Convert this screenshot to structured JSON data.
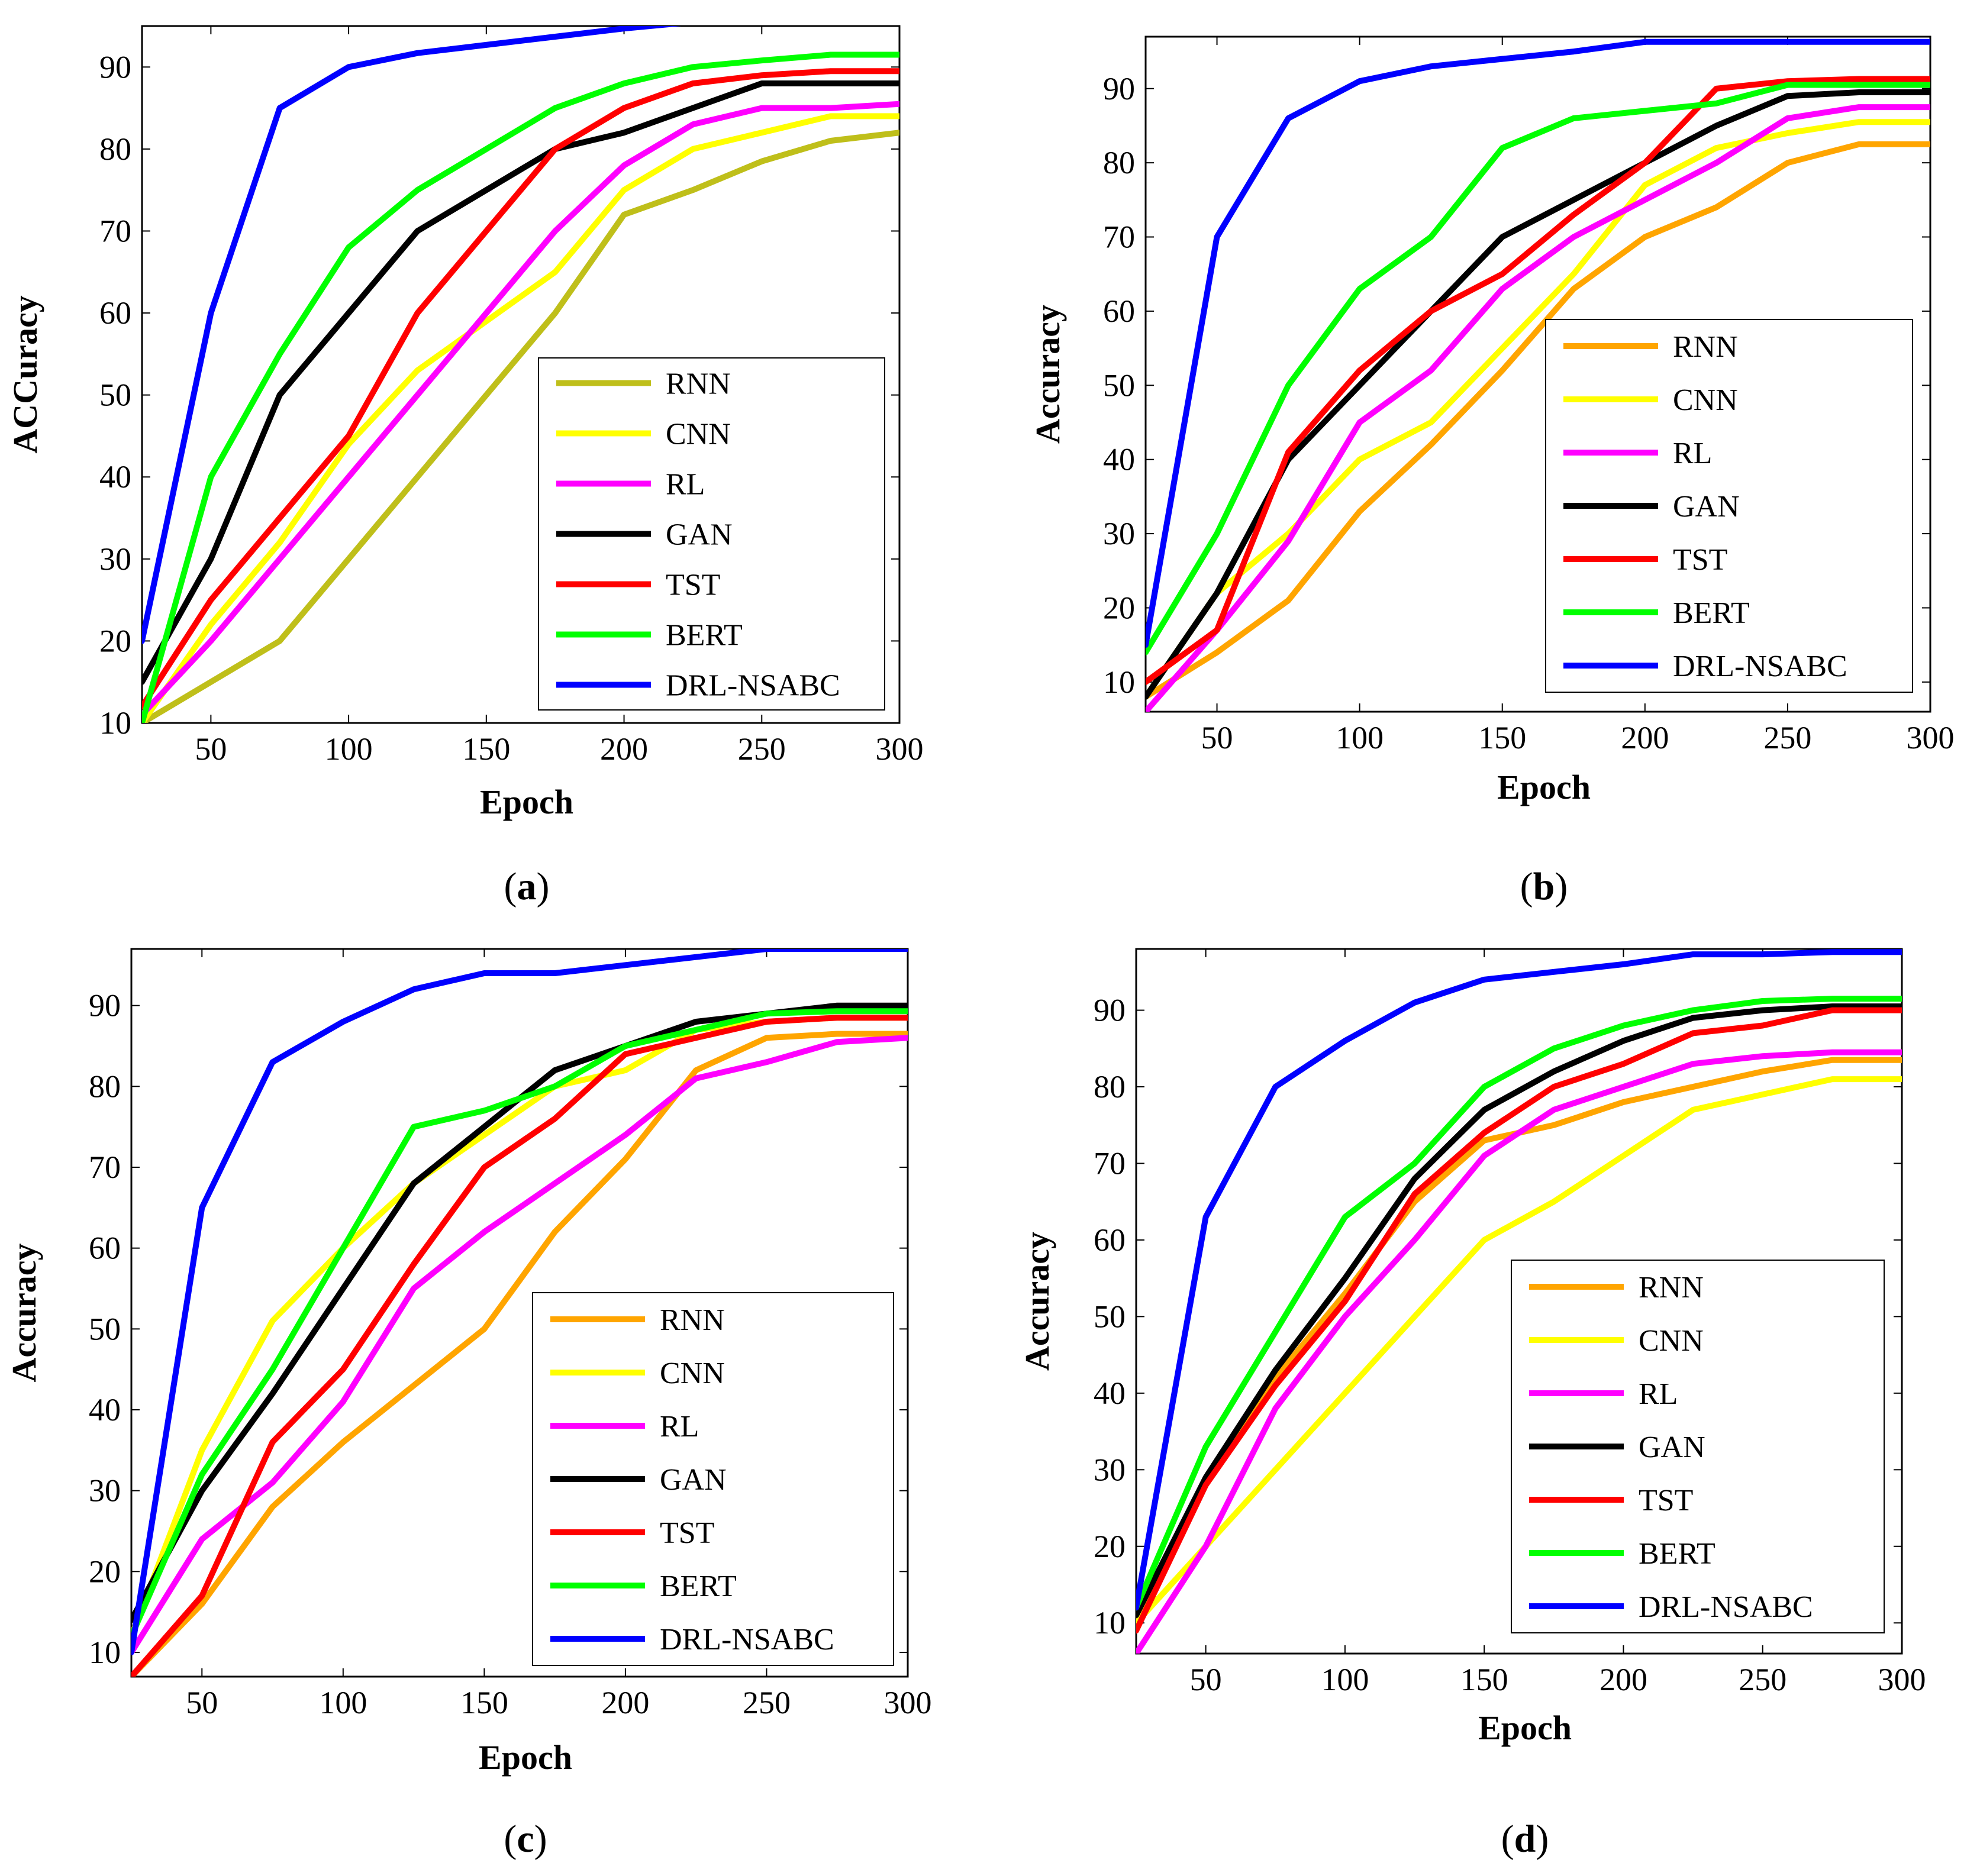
{
  "chart_data": [
    {
      "id": "a",
      "type": "line",
      "caption_letter": "a",
      "xlabel": "Epoch",
      "ylabel": "ACCuracy",
      "xlim": [
        25,
        300
      ],
      "ylim": [
        10,
        95
      ],
      "xticks": [
        50,
        100,
        150,
        200,
        250,
        300
      ],
      "yticks": [
        10,
        20,
        30,
        40,
        50,
        60,
        70,
        80,
        90
      ],
      "legend_position": "bottom-right",
      "x": [
        25,
        50,
        75,
        100,
        125,
        150,
        175,
        200,
        225,
        250,
        275,
        300
      ],
      "series": [
        {
          "name": "RNN",
          "color": "#bfbf1a",
          "values": [
            10,
            15,
            20,
            30,
            40,
            50,
            60,
            72,
            75,
            78.5,
            81,
            82
          ]
        },
        {
          "name": "CNN",
          "color": "#ffff00",
          "values": [
            10,
            22,
            32,
            44,
            53,
            59,
            65,
            75,
            80,
            82,
            84,
            84
          ]
        },
        {
          "name": "RL",
          "color": "#ff00ff",
          "values": [
            11,
            20,
            30,
            40,
            50,
            60,
            70,
            78,
            83,
            85,
            85,
            85.5
          ]
        },
        {
          "name": "GAN",
          "color": "#000000",
          "values": [
            15,
            30,
            50,
            60,
            70,
            75,
            80,
            82,
            85,
            88,
            88,
            88
          ]
        },
        {
          "name": "TST",
          "color": "#ff0000",
          "values": [
            12,
            25,
            35,
            45,
            60,
            70,
            80,
            85,
            88,
            89,
            89.5,
            89.5
          ]
        },
        {
          "name": "BERT",
          "color": "#00ff00",
          "values": [
            10,
            40,
            55,
            68,
            75,
            80,
            85,
            88,
            90,
            90.8,
            91.5,
            91.5
          ]
        },
        {
          "name": "DRL-NSABC",
          "color": "#0000ff",
          "values": [
            20,
            60,
            85,
            90,
            91.7,
            92.7,
            93.7,
            94.7,
            95.5,
            95.5,
            95.5,
            95.5
          ]
        }
      ]
    },
    {
      "id": "b",
      "type": "line",
      "caption_letter": "b",
      "xlabel": "Epoch",
      "ylabel": "Accuracy",
      "xlim": [
        25,
        300
      ],
      "ylim": [
        6,
        97
      ],
      "xticks": [
        50,
        100,
        150,
        200,
        250,
        300
      ],
      "yticks": [
        10,
        20,
        30,
        40,
        50,
        60,
        70,
        80,
        90
      ],
      "legend_position": "bottom-right",
      "x": [
        25,
        50,
        75,
        100,
        125,
        150,
        175,
        200,
        225,
        250,
        275,
        300
      ],
      "series": [
        {
          "name": "RNN",
          "color": "#ffa500",
          "values": [
            8,
            14,
            21,
            33,
            42,
            52,
            63,
            70,
            74,
            80,
            82.5,
            82.5
          ]
        },
        {
          "name": "CNN",
          "color": "#ffff00",
          "values": [
            8,
            22,
            30,
            40,
            45,
            55,
            65,
            77,
            82,
            84,
            85.5,
            85.5
          ]
        },
        {
          "name": "RL",
          "color": "#ff00ff",
          "values": [
            6,
            17,
            29,
            45,
            52,
            63,
            70,
            75,
            80,
            86,
            87.5,
            87.5
          ]
        },
        {
          "name": "GAN",
          "color": "#000000",
          "values": [
            8,
            22,
            40,
            50,
            60,
            70,
            75,
            80,
            85,
            89,
            89.5,
            89.5
          ]
        },
        {
          "name": "TST",
          "color": "#ff0000",
          "values": [
            10,
            17,
            41,
            52,
            60,
            65,
            73,
            80,
            90,
            91,
            91.3,
            91.3
          ]
        },
        {
          "name": "BERT",
          "color": "#00ff00",
          "values": [
            14,
            30,
            50,
            63,
            70,
            82,
            86,
            87,
            88,
            90.5,
            90.5,
            90.5
          ]
        },
        {
          "name": "DRL-NSABC",
          "color": "#0000ff",
          "values": [
            15,
            70,
            86,
            91,
            93,
            94,
            95,
            96.3,
            96.3,
            96.3,
            96.3,
            96.3
          ]
        }
      ]
    },
    {
      "id": "c",
      "type": "line",
      "caption_letter": "c",
      "xlabel": "Epoch",
      "ylabel": "Accuracy",
      "xlim": [
        25,
        300
      ],
      "ylim": [
        7,
        97
      ],
      "xticks": [
        50,
        100,
        150,
        200,
        250,
        300
      ],
      "yticks": [
        10,
        20,
        30,
        40,
        50,
        60,
        70,
        80,
        90
      ],
      "legend_position": "bottom-right",
      "x": [
        25,
        50,
        75,
        100,
        125,
        150,
        175,
        200,
        225,
        250,
        275,
        300
      ],
      "series": [
        {
          "name": "RNN",
          "color": "#ffa500",
          "values": [
            7,
            16,
            28,
            36,
            43,
            50,
            62,
            71,
            82,
            86,
            86.5,
            86.5
          ]
        },
        {
          "name": "CNN",
          "color": "#ffff00",
          "values": [
            12,
            35,
            51,
            60,
            68,
            74,
            80,
            82,
            87,
            88,
            88.5,
            88.5
          ]
        },
        {
          "name": "RL",
          "color": "#ff00ff",
          "values": [
            10,
            24,
            31,
            41,
            55,
            62,
            68,
            74,
            81,
            83,
            85.5,
            86
          ]
        },
        {
          "name": "GAN",
          "color": "#000000",
          "values": [
            14,
            30,
            42,
            55,
            68,
            75,
            82,
            85,
            88,
            89,
            90,
            90
          ]
        },
        {
          "name": "TST",
          "color": "#ff0000",
          "values": [
            7,
            17,
            36,
            45,
            58,
            70,
            76,
            84,
            86,
            88,
            88.5,
            88.5
          ]
        },
        {
          "name": "BERT",
          "color": "#00ff00",
          "values": [
            12,
            32,
            45,
            60,
            75,
            77,
            80,
            85,
            87,
            89,
            89.3,
            89.3
          ]
        },
        {
          "name": "DRL-NSABC",
          "color": "#0000ff",
          "values": [
            10,
            65,
            83,
            88,
            92,
            94,
            94,
            95,
            96,
            97,
            97,
            97
          ]
        }
      ]
    },
    {
      "id": "d",
      "type": "line",
      "caption_letter": "d",
      "xlabel": "Epoch",
      "ylabel": "Accuracy",
      "xlim": [
        25,
        300
      ],
      "ylim": [
        6,
        98
      ],
      "xticks": [
        50,
        100,
        150,
        200,
        250,
        300
      ],
      "yticks": [
        10,
        20,
        30,
        40,
        50,
        60,
        70,
        80,
        90
      ],
      "legend_position": "bottom-right",
      "x": [
        25,
        50,
        75,
        100,
        125,
        150,
        175,
        200,
        225,
        250,
        275,
        300
      ],
      "series": [
        {
          "name": "RNN",
          "color": "#ffa500",
          "values": [
            10,
            28,
            42,
            53,
            65,
            73,
            75,
            78,
            80,
            82,
            83.5,
            83.5
          ]
        },
        {
          "name": "CNN",
          "color": "#ffff00",
          "values": [
            10,
            20,
            30,
            40,
            50,
            60,
            65,
            71,
            77,
            79,
            81,
            81
          ]
        },
        {
          "name": "RL",
          "color": "#ff00ff",
          "values": [
            6,
            20,
            38,
            50,
            60,
            71,
            77,
            80,
            83,
            84,
            84.5,
            84.5
          ]
        },
        {
          "name": "GAN",
          "color": "#000000",
          "values": [
            11,
            29,
            43,
            55,
            68,
            77,
            82,
            86,
            89,
            90,
            90.5,
            90.5
          ]
        },
        {
          "name": "TST",
          "color": "#ff0000",
          "values": [
            9,
            28,
            41,
            52,
            66,
            74,
            80,
            83,
            87,
            88,
            90,
            90
          ]
        },
        {
          "name": "BERT",
          "color": "#00ff00",
          "values": [
            12,
            33,
            48,
            63,
            70,
            80,
            85,
            88,
            90,
            91.2,
            91.5,
            91.5
          ]
        },
        {
          "name": "DRL-NSABC",
          "color": "#0000ff",
          "values": [
            12,
            63,
            80,
            86,
            91,
            94,
            95,
            96,
            97.3,
            97.3,
            97.6,
            97.6
          ]
        }
      ]
    }
  ]
}
